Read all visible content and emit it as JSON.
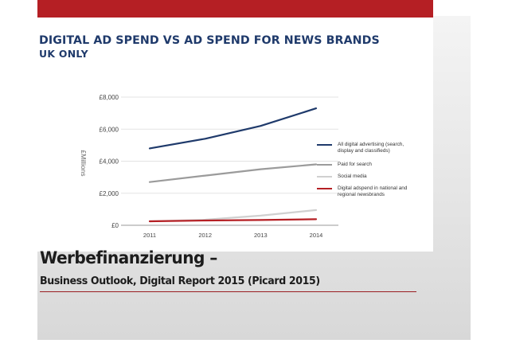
{
  "colors": {
    "accent_red": "#b51f24",
    "title_blue": "#1f3a6b"
  },
  "slide": {
    "title": "Werbefinanzierung –",
    "subtitle": "Business Outlook, Digital Report 2015 (Picard 2015)"
  },
  "chart_data": {
    "type": "line",
    "title": "DIGITAL AD SPEND VS AD SPEND FOR NEWS BRANDS",
    "subtitle": "UK ONLY",
    "ylabel": "£Millions",
    "xlabel": "",
    "x": [
      "2011",
      "2012",
      "2013",
      "2014"
    ],
    "ylim": [
      0,
      8000
    ],
    "yticks": [
      0,
      2000,
      4000,
      6000,
      8000
    ],
    "ytick_labels": [
      "£0",
      "£2,000",
      "£4,000",
      "£6,000",
      "£8,000"
    ],
    "grid": true,
    "legend_position": "right",
    "series": [
      {
        "name": "All digital advertising (search, display and classifieds)",
        "color": "#1f3a6b",
        "values": [
          4800,
          5400,
          6200,
          7300
        ]
      },
      {
        "name": "Paid for search",
        "color": "#9b9b9b",
        "values": [
          2700,
          3100,
          3500,
          3800
        ]
      },
      {
        "name": "Social media",
        "color": "#d0d0d0",
        "values": [
          250,
          350,
          600,
          950
        ]
      },
      {
        "name": "Digital adspend in national and regional newsbrands",
        "color": "#b51f24",
        "values": [
          250,
          300,
          330,
          380
        ]
      }
    ]
  }
}
